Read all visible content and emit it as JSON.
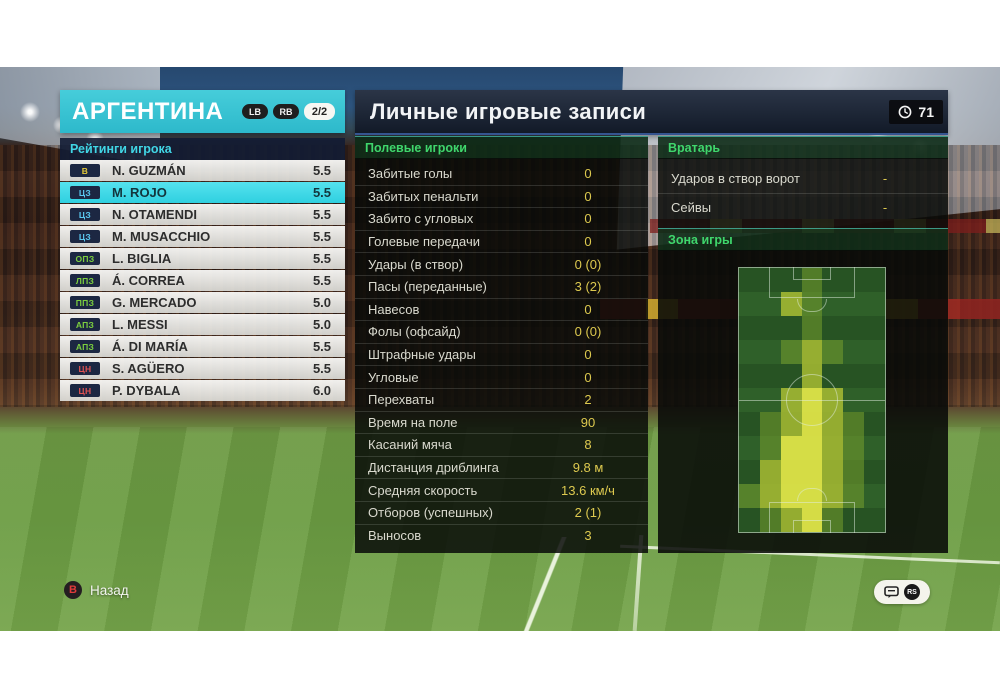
{
  "header": {
    "team": "АРГЕНТИНА",
    "lb_button": "LB",
    "rb_button": "RB",
    "page_indicator": "2/2"
  },
  "ratings": {
    "title": "Рейтинги игрока",
    "players": [
      {
        "pos": "В",
        "pos_type": "gk",
        "name": "N. GUZMÁN",
        "rating": "5.5",
        "selected": false
      },
      {
        "pos": "ЦЗ",
        "pos_type": "def",
        "name": "M. ROJO",
        "rating": "5.5",
        "selected": true
      },
      {
        "pos": "ЦЗ",
        "pos_type": "def",
        "name": "N. OTAMENDI",
        "rating": "5.5",
        "selected": false
      },
      {
        "pos": "ЦЗ",
        "pos_type": "def",
        "name": "M. MUSACCHIO",
        "rating": "5.5",
        "selected": false
      },
      {
        "pos": "ОПЗ",
        "pos_type": "mid",
        "name": "L. BIGLIA",
        "rating": "5.5",
        "selected": false
      },
      {
        "pos": "ЛПЗ",
        "pos_type": "mid",
        "name": "Á. CORREA",
        "rating": "5.5",
        "selected": false
      },
      {
        "pos": "ППЗ",
        "pos_type": "mid",
        "name": "G. MERCADO",
        "rating": "5.0",
        "selected": false
      },
      {
        "pos": "АПЗ",
        "pos_type": "mid",
        "name": "L. MESSI",
        "rating": "5.0",
        "selected": false
      },
      {
        "pos": "АПЗ",
        "pos_type": "mid",
        "name": "Á. DI MARÍA",
        "rating": "5.5",
        "selected": false
      },
      {
        "pos": "ЦН",
        "pos_type": "fwd",
        "name": "S. AGÜERO",
        "rating": "5.5",
        "selected": false
      },
      {
        "pos": "ЦН",
        "pos_type": "fwd",
        "name": "P. DYBALA",
        "rating": "6.0",
        "selected": false
      }
    ]
  },
  "main": {
    "title": "Личные игровые записи",
    "time": "71"
  },
  "field_stats": {
    "title": "Полевые игроки",
    "rows": [
      {
        "label": "Забитые голы",
        "value": "0"
      },
      {
        "label": "Забитых пенальти",
        "value": "0"
      },
      {
        "label": "Забито с угловых",
        "value": "0"
      },
      {
        "label": "Голевые передачи",
        "value": "0"
      },
      {
        "label": "Удары (в створ)",
        "value": "0 (0)"
      },
      {
        "label": "Пасы (переданные)",
        "value": "3 (2)"
      },
      {
        "label": "Навесов",
        "value": "0"
      },
      {
        "label": "Фолы (офсайд)",
        "value": "0 (0)"
      },
      {
        "label": "Штрафные удары",
        "value": "0"
      },
      {
        "label": "Угловые",
        "value": "0"
      },
      {
        "label": "Перехваты",
        "value": "2"
      },
      {
        "label": "Время на поле",
        "value": "90"
      },
      {
        "label": "Касаний мяча",
        "value": "8"
      },
      {
        "label": "Дистанция дриблинга",
        "value": "9.8 м"
      },
      {
        "label": "Средняя скорость",
        "value": "13.6 км/ч"
      },
      {
        "label": "Отборов (успешных)",
        "value": "2 (1)"
      },
      {
        "label": "Выносов",
        "value": "3"
      }
    ]
  },
  "goalkeeper": {
    "title": "Вратарь",
    "rows": [
      {
        "label": "Ударов в створ ворот",
        "value": "-"
      },
      {
        "label": "Сейвы",
        "value": "-"
      }
    ]
  },
  "zone": {
    "title": "Зона игры",
    "heatmap": {
      "cols": 7,
      "rows": 11,
      "legend": "0=none 1=low 2=medium 3=high",
      "cells": [
        [
          0,
          0,
          0,
          1,
          0,
          0,
          0
        ],
        [
          0,
          0,
          2,
          1,
          0,
          0,
          0
        ],
        [
          0,
          0,
          0,
          1,
          0,
          0,
          0
        ],
        [
          0,
          0,
          1,
          2,
          1,
          0,
          0
        ],
        [
          0,
          0,
          0,
          2,
          0,
          0,
          0
        ],
        [
          0,
          0,
          2,
          3,
          2,
          0,
          0
        ],
        [
          0,
          1,
          2,
          3,
          2,
          1,
          0
        ],
        [
          0,
          1,
          3,
          3,
          2,
          1,
          0
        ],
        [
          0,
          2,
          3,
          3,
          2,
          1,
          0
        ],
        [
          1,
          2,
          3,
          3,
          2,
          1,
          0
        ],
        [
          0,
          1,
          2,
          3,
          1,
          0,
          0
        ]
      ]
    }
  },
  "footer": {
    "back_button": "B",
    "back_label": "Назад",
    "rs_label": "RS"
  },
  "colors": {
    "accent_cyan": "#35c6d6",
    "ratings_title_color": "#41d6e6",
    "section_title_color": "#3fd66c",
    "value_color": "#ddc94f",
    "pos_gk": "#e3c838",
    "pos_def": "#5bc8f0",
    "pos_mid": "#7ccf3f",
    "pos_fwd": "#e05252",
    "b_button_red": "#e23b3b",
    "heat_low": "rgba(118,158,45,.55)",
    "heat_mid": "rgba(168,188,50,.85)",
    "heat_high": "rgba(222,228,72,.95)"
  }
}
